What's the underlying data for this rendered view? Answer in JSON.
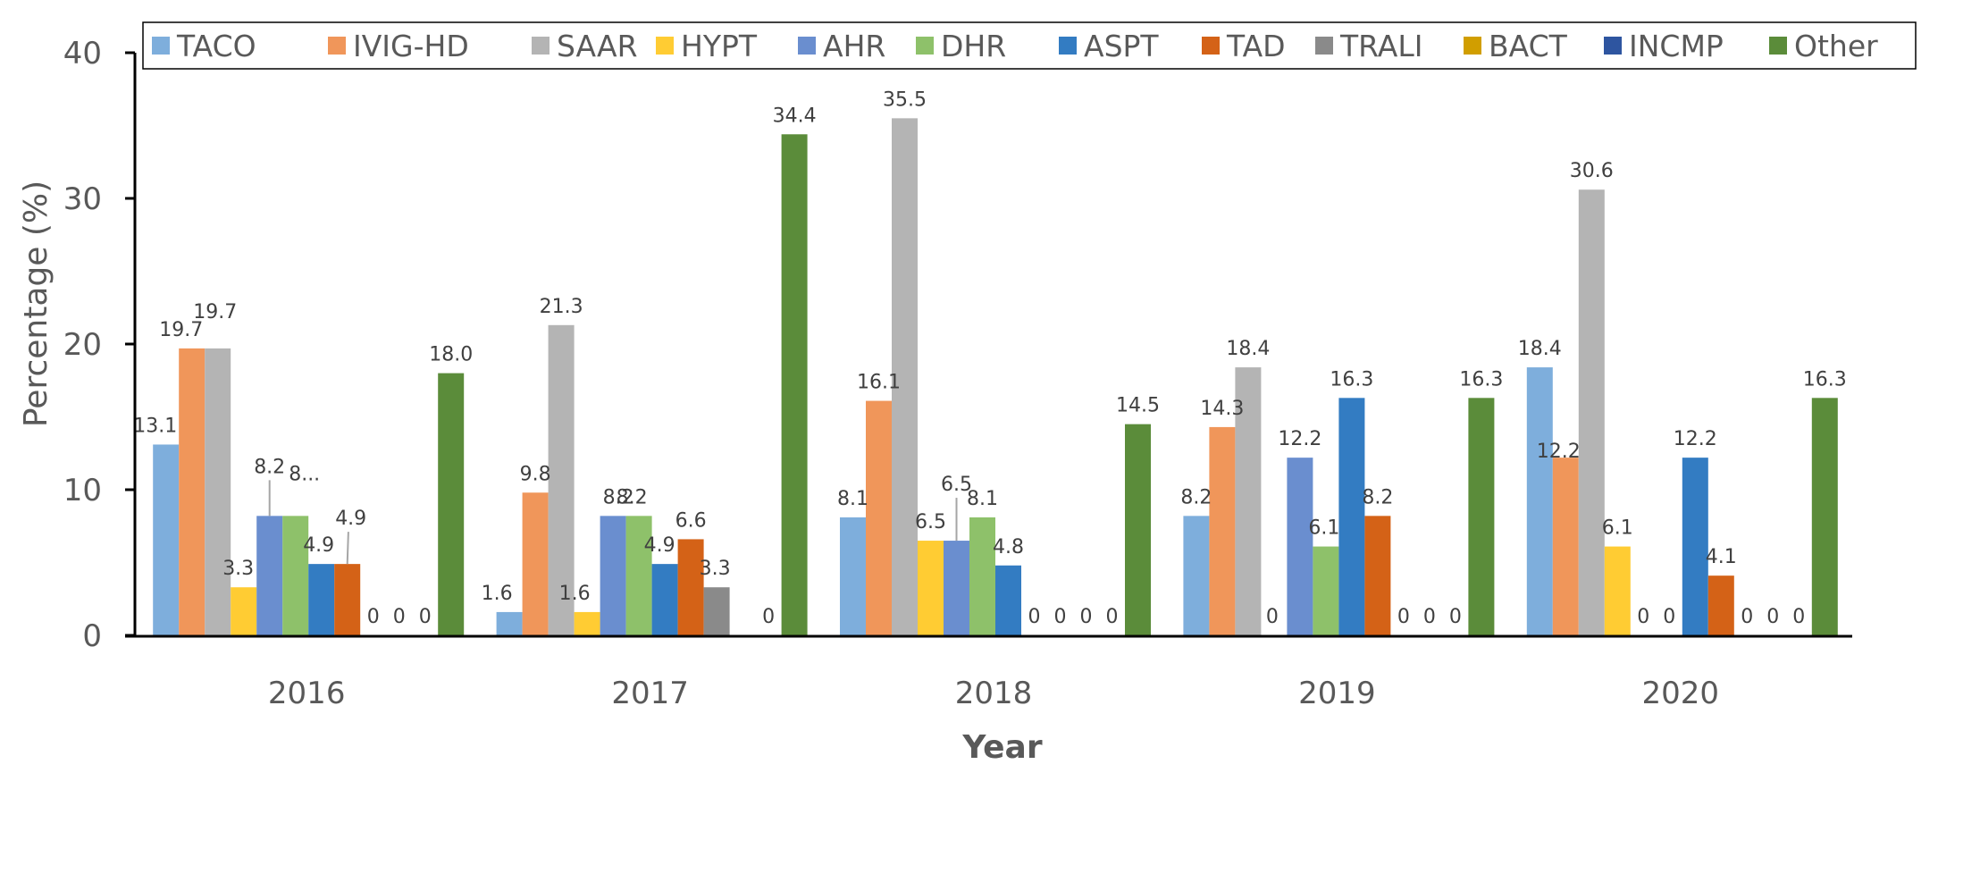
{
  "chart_data": {
    "type": "bar",
    "title": "",
    "xlabel": "Year",
    "ylabel": "Percentage (%)",
    "ylim": [
      0,
      40
    ],
    "yticks": [
      0,
      10,
      20,
      30,
      40
    ],
    "grid": false,
    "legend_position": "top",
    "categories": [
      "2016",
      "2017",
      "2018",
      "2019",
      "2020"
    ],
    "series": [
      {
        "name": "TACO",
        "color": "#7EAEDC",
        "values": [
          13.1,
          1.6,
          8.1,
          8.2,
          18.4
        ],
        "labels": [
          "13.1",
          "1.6",
          "8.1",
          "8.2",
          "18.4"
        ]
      },
      {
        "name": "IVIG-HD",
        "color": "#F0965A",
        "values": [
          19.7,
          9.8,
          16.1,
          14.3,
          12.2
        ],
        "labels": [
          "19.7",
          "9.8",
          "16.1",
          "14.3",
          "12.2"
        ]
      },
      {
        "name": "SAAR",
        "color": "#B4B4B4",
        "values": [
          19.7,
          21.3,
          35.5,
          18.4,
          30.6
        ],
        "labels": [
          "19.7",
          "21.3",
          "35.5",
          "18.4",
          "30.6"
        ]
      },
      {
        "name": "HYPT",
        "color": "#FFCC33",
        "values": [
          3.3,
          1.6,
          6.5,
          0,
          6.1
        ],
        "labels": [
          "3.3",
          "1.6",
          "6.5",
          "0",
          "6.1"
        ]
      },
      {
        "name": "AHR",
        "color": "#6A8ECF",
        "values": [
          8.2,
          8.2,
          6.5,
          12.2,
          0
        ],
        "labels": [
          "8.2",
          "8.2",
          "6.5",
          "12.2",
          "0"
        ]
      },
      {
        "name": "DHR",
        "color": "#8EC16A",
        "values": [
          8.2,
          8.2,
          8.1,
          6.1,
          0
        ],
        "labels": [
          "8...",
          "8.2",
          "8.1",
          "6.1",
          "0"
        ]
      },
      {
        "name": "ASPT",
        "color": "#337CC2",
        "values": [
          4.9,
          4.9,
          4.8,
          16.3,
          12.2
        ],
        "labels": [
          "4.9",
          "4.9",
          "4.8",
          "16.3",
          "12.2"
        ]
      },
      {
        "name": "TAD",
        "color": "#D46217",
        "values": [
          4.9,
          6.6,
          0,
          8.2,
          4.1
        ],
        "labels": [
          "4.9",
          "6.6",
          "0",
          "8.2",
          "4.1"
        ]
      },
      {
        "name": "TRALI",
        "color": "#8A8A8A",
        "values": [
          0,
          3.3,
          0,
          0,
          0
        ],
        "labels": [
          "0",
          "3.3",
          "0",
          "0",
          "0"
        ]
      },
      {
        "name": "BACT",
        "color": "#D19E00",
        "values": [
          0,
          null,
          0,
          0,
          0
        ],
        "labels": [
          "0",
          null,
          "0",
          "0",
          "0"
        ]
      },
      {
        "name": "INCMP",
        "color": "#2E55A0",
        "values": [
          0,
          0,
          0,
          0,
          0
        ],
        "labels": [
          "0",
          "0",
          "0",
          "0",
          "0"
        ]
      },
      {
        "name": "Other",
        "color": "#5B8C3A",
        "values": [
          18.0,
          34.4,
          14.5,
          16.3,
          16.3
        ],
        "labels": [
          "18.0",
          "34.4",
          "14.5",
          "16.3",
          "16.3"
        ]
      }
    ]
  }
}
